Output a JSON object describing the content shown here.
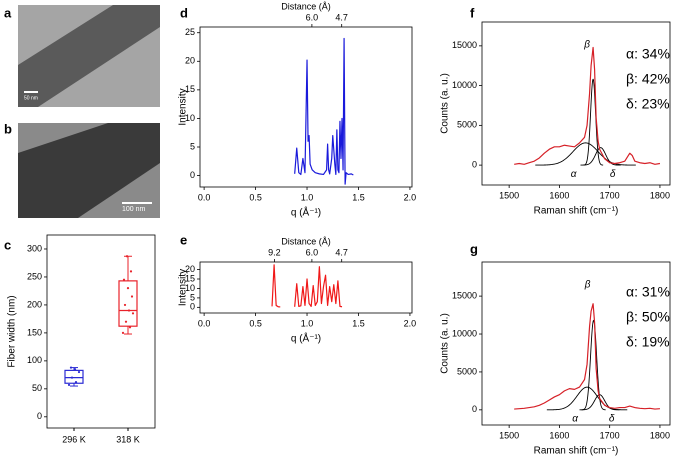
{
  "chart_data": [
    {
      "type": "image",
      "label": "a",
      "scale_bar": "50 nm"
    },
    {
      "type": "image",
      "label": "b",
      "scale_bar": "100 nm"
    },
    {
      "type": "box",
      "label": "c",
      "ylabel": "Fiber width (nm)",
      "categories": [
        "296 K",
        "318 K"
      ],
      "colors": [
        "#2b2bd4",
        "#e8222a"
      ],
      "ylim": [
        -20,
        325
      ],
      "yticks": [
        0,
        50,
        100,
        150,
        200,
        250,
        300
      ],
      "boxes": [
        {
          "min": 55,
          "q1": 60,
          "median": 70,
          "q3": 83,
          "max": 88,
          "points": [
            57,
            62,
            70,
            80,
            85,
            88
          ]
        },
        {
          "min": 148,
          "q1": 162,
          "median": 190,
          "q3": 243,
          "max": 287,
          "points": [
            150,
            160,
            170,
            185,
            190,
            200,
            215,
            230,
            245,
            260,
            287
          ]
        }
      ]
    },
    {
      "type": "line",
      "label": "d",
      "ylabel": "Intensity",
      "xlabel": "q (Å⁻¹)",
      "x2label": "Distance (Å)",
      "x2scale": "2pi/d",
      "xlim": [
        -0.04,
        2.02
      ],
      "ylim": [
        -2,
        26
      ],
      "xticks": [
        {
          "value": 0,
          "label": "0.0"
        },
        0.5,
        {
          "value": 1,
          "label": "1.0"
        },
        1.5,
        {
          "value": 2,
          "label": "2.0"
        }
      ],
      "yticks": [
        0,
        5,
        10,
        15,
        20,
        25
      ],
      "x2ticks": [
        {
          "value": 6,
          "label": "6.0"
        },
        4.7
      ],
      "x": [
        0.88,
        0.9,
        0.92,
        0.94,
        0.96,
        0.98,
        1.0,
        1.01,
        1.02,
        1.03,
        1.05,
        1.08,
        1.12,
        1.16,
        1.19,
        1.2,
        1.21,
        1.22,
        1.24,
        1.25,
        1.27,
        1.28,
        1.29,
        1.3,
        1.31,
        1.32,
        1.33,
        1.34,
        1.35,
        1.36,
        1.37,
        1.38,
        1.4,
        1.43,
        1.45
      ],
      "series": [
        {
          "color": "#1a1adb",
          "values": [
            0.3,
            4.8,
            0.5,
            0.2,
            3,
            0.5,
            20.2,
            6,
            7,
            2,
            1,
            0.5,
            0.3,
            0.2,
            1,
            5.5,
            1,
            0.3,
            3,
            7,
            2,
            0.2,
            8,
            1,
            0.5,
            9.5,
            3,
            10,
            1,
            24,
            -1.5,
            0.5,
            0.2,
            0.3,
            0.1
          ]
        }
      ]
    },
    {
      "type": "line",
      "label": "e",
      "ylabel": "Intensity",
      "xlabel": "q (Å⁻¹)",
      "x2label": "Distance (Å)",
      "x2scale": "2pi/d",
      "xlim": [
        -0.04,
        2.02
      ],
      "ylim": [
        -3,
        24
      ],
      "xticks": [
        {
          "value": 0,
          "label": "0.0"
        },
        0.5,
        {
          "value": 1,
          "label": "1.0"
        },
        1.5,
        {
          "value": 2,
          "label": "2.0"
        }
      ],
      "yticks": [
        0,
        5,
        10,
        15,
        20
      ],
      "x2ticks": [
        9.2,
        {
          "value": 6,
          "label": "6.0"
        },
        4.7
      ],
      "x": [
        0.66,
        0.68,
        0.7,
        0.72,
        0.74,
        0.8,
        0.88,
        0.9,
        0.92,
        0.94,
        0.96,
        0.98,
        1.0,
        1.02,
        1.04,
        1.06,
        1.08,
        1.1,
        1.12,
        1.14,
        1.16,
        1.18,
        1.2,
        1.22,
        1.24,
        1.26,
        1.28,
        1.3,
        1.32,
        1.34
      ],
      "series": [
        {
          "color": "#f01818",
          "values": [
            0.5,
            22.5,
            1,
            0.3,
            0.2,
            null,
            0.3,
            12.5,
            0.5,
            0.8,
            11,
            1,
            15,
            2,
            0.5,
            11.5,
            1,
            3,
            21.5,
            2,
            11,
            17,
            1,
            11,
            3,
            12,
            2,
            14,
            0.5,
            0.3
          ]
        }
      ]
    },
    {
      "type": "line",
      "label": "f",
      "ylabel": "Counts (a. u.)",
      "xlabel": "Raman shift (cm⁻¹)",
      "xlim": [
        1446,
        1820
      ],
      "ylim": [
        -2500,
        18000
      ],
      "xticks": [
        1500,
        1600,
        1700,
        1800
      ],
      "yticks": [
        0,
        5000,
        10000,
        15000
      ],
      "x": [
        1510,
        1520,
        1530,
        1540,
        1550,
        1560,
        1570,
        1580,
        1590,
        1600,
        1610,
        1620,
        1630,
        1640,
        1650,
        1655,
        1660,
        1663,
        1667,
        1670,
        1673,
        1677,
        1680,
        1690,
        1700,
        1710,
        1720,
        1730,
        1740,
        1745,
        1750,
        1760,
        1770,
        1780,
        1790,
        1800
      ],
      "series": [
        {
          "color": "#d62027",
          "values": [
            100,
            200,
            100,
            300,
            500,
            900,
            1500,
            2000,
            2300,
            2300,
            2500,
            2400,
            2300,
            2800,
            3500,
            5000,
            9000,
            12500,
            14800,
            12000,
            6000,
            3000,
            2000,
            800,
            300,
            200,
            300,
            500,
            1500,
            1200,
            500,
            300,
            200,
            300,
            100,
            200
          ]
        }
      ],
      "component_color": "#000000",
      "components": [
        {
          "name": "α",
          "center": 1652,
          "height": 2800,
          "width": 25
        },
        {
          "name": "β",
          "center": 1667,
          "height": 10800,
          "width": 5
        },
        {
          "name": "δ",
          "center": 1682,
          "height": 2200,
          "width": 10
        }
      ],
      "annotations": [
        "α: 34%",
        "β: 42%",
        "δ: 23%"
      ]
    },
    {
      "type": "line",
      "label": "g",
      "ylabel": "Counts (a. u.)",
      "xlabel": "Raman shift (cm⁻¹)",
      "xlim": [
        1446,
        1820
      ],
      "ylim": [
        -2000,
        19500
      ],
      "xticks": [
        1500,
        1600,
        1700,
        1800
      ],
      "yticks": [
        0,
        5000,
        10000,
        15000
      ],
      "x": [
        1510,
        1520,
        1530,
        1540,
        1550,
        1560,
        1570,
        1580,
        1590,
        1600,
        1610,
        1620,
        1630,
        1640,
        1650,
        1655,
        1660,
        1663,
        1667,
        1670,
        1673,
        1677,
        1680,
        1690,
        1700,
        1710,
        1720,
        1730,
        1740,
        1745,
        1750,
        1760,
        1770,
        1780,
        1790,
        1800
      ],
      "series": [
        {
          "color": "#d62027",
          "values": [
            100,
            150,
            200,
            300,
            400,
            600,
            900,
            1300,
            1700,
            2000,
            2500,
            2800,
            2700,
            3000,
            4000,
            6000,
            11000,
            13000,
            14000,
            11500,
            5500,
            2500,
            1500,
            600,
            300,
            200,
            300,
            300,
            500,
            400,
            300,
            200,
            150,
            200,
            100,
            150
          ]
        }
      ],
      "component_color": "#000000",
      "components": [
        {
          "name": "α",
          "center": 1655,
          "height": 3000,
          "width": 20
        },
        {
          "name": "β",
          "center": 1668,
          "height": 11800,
          "width": 6
        },
        {
          "name": "δ",
          "center": 1680,
          "height": 2000,
          "width": 10
        }
      ],
      "annotations": [
        "α: 31%",
        "β: 50%",
        "δ: 19%"
      ]
    }
  ]
}
